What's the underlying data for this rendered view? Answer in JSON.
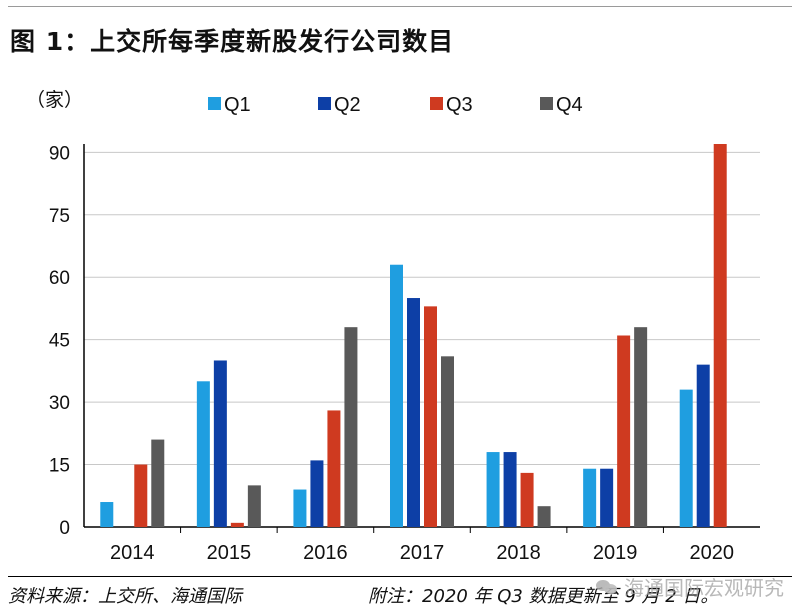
{
  "header": {
    "title": "图 1：上交所每季度新股发行公司数目"
  },
  "chart_data": {
    "type": "bar",
    "title": "图 1：上交所每季度新股发行公司数目",
    "ylabel": "（家）",
    "xlabel": "",
    "categories": [
      "2014",
      "2015",
      "2016",
      "2017",
      "2018",
      "2019",
      "2020"
    ],
    "series": [
      {
        "name": "Q1",
        "color": "#1f9ee0",
        "values": [
          6,
          35,
          9,
          63,
          18,
          14,
          33
        ]
      },
      {
        "name": "Q2",
        "color": "#0d3fa6",
        "values": [
          0,
          40,
          16,
          55,
          18,
          14,
          39
        ]
      },
      {
        "name": "Q3",
        "color": "#cf3a20",
        "values": [
          15,
          1,
          28,
          53,
          13,
          46,
          92
        ]
      },
      {
        "name": "Q4",
        "color": "#595959",
        "values": [
          21,
          10,
          48,
          41,
          5,
          48,
          null
        ]
      }
    ],
    "ylim": [
      0,
      92
    ],
    "yticks": [
      0,
      15,
      30,
      45,
      60,
      75,
      90
    ],
    "grid": true,
    "legend_position": "top"
  },
  "footer": {
    "source": "资料来源：上交所、海通国际",
    "note": "附注：2020 年 Q3 数据更新至 9 月 2 日。",
    "watermark": "海通国际宏观研究"
  }
}
